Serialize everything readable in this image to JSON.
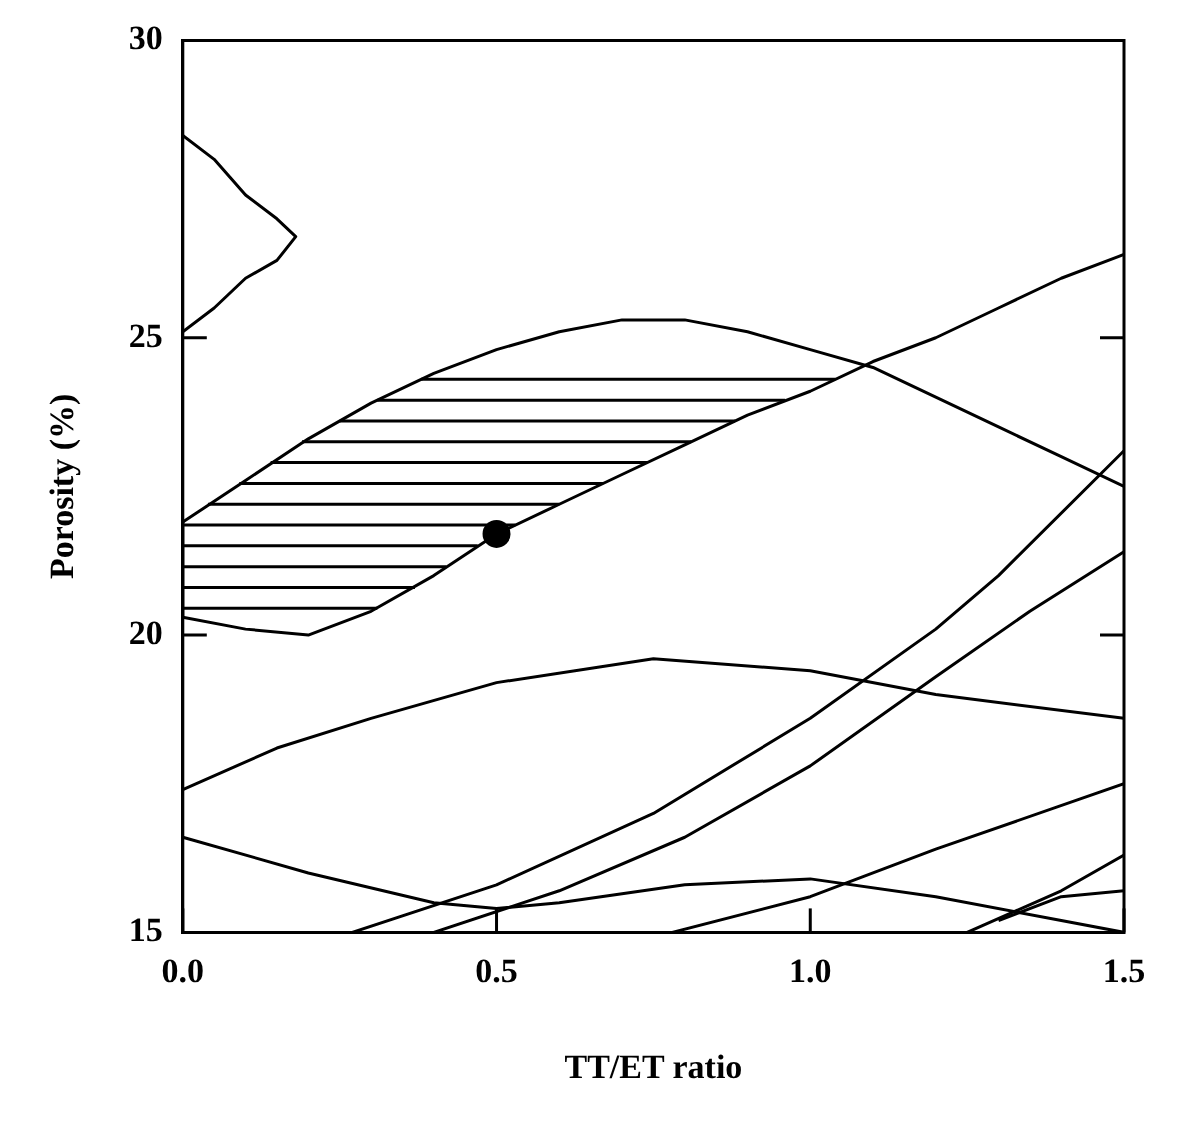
{
  "chart_data": {
    "type": "line",
    "xlabel": "TT/ET ratio",
    "ylabel": "Porosity (%)",
    "xlim": [
      0,
      1.5
    ],
    "ylim": [
      15,
      30
    ],
    "xticks": [
      {
        "value": 0,
        "label": "0.0"
      },
      {
        "value": 0.5,
        "label": "0.5"
      },
      {
        "value": 1,
        "label": "1.0"
      },
      {
        "value": 1.5,
        "label": "1.5"
      }
    ],
    "yticks": [
      15,
      20,
      25,
      30
    ],
    "grid": false,
    "legend": false,
    "marker": "none",
    "line_style": "solid",
    "series": [
      {
        "color": "#000000",
        "x": [
          0,
          0.05,
          0.1,
          0.15,
          0.18,
          0.15,
          0.1,
          0.05,
          0
        ],
        "values": [
          28.4,
          28,
          27.4,
          27,
          26.7,
          26.3,
          26,
          25.5,
          25.1
        ]
      },
      {
        "color": "#000000",
        "x": [
          0,
          0.1,
          0.2,
          0.3,
          0.4,
          0.5,
          0.6,
          0.7,
          0.8,
          0.9,
          1,
          1.1,
          1.2,
          1.3,
          1.4,
          1.5
        ],
        "values": [
          21.9,
          22.6,
          23.3,
          23.9,
          24.4,
          24.8,
          25.1,
          25.3,
          25.3,
          25.1,
          24.8,
          24.5,
          24,
          23.5,
          23,
          22.5
        ]
      },
      {
        "color": "#000000",
        "x": [
          0,
          0,
          0.1,
          0.2,
          0.3,
          0.4,
          0.5,
          0.6,
          0.7,
          0.8,
          0.9,
          1,
          1.1,
          1.2,
          1.3,
          1.4,
          1.5
        ],
        "values": [
          21.9,
          20.3,
          20.1,
          20,
          20.4,
          21,
          21.7,
          22.2,
          22.7,
          23.2,
          23.7,
          24.1,
          24.6,
          25,
          25.5,
          26,
          26.4
        ]
      },
      {
        "color": "#000000",
        "x": [
          0,
          0.15,
          0.3,
          0.5,
          0.75,
          1,
          1.2,
          1.5
        ],
        "values": [
          17.4,
          18.1,
          18.6,
          19.2,
          19.6,
          19.4,
          19,
          18.6
        ]
      },
      {
        "color": "#000000",
        "x": [
          0,
          0.2,
          0.4,
          0.5,
          0.6,
          0.8,
          1,
          1.2,
          1.4,
          1.5
        ],
        "values": [
          16.6,
          16,
          15.5,
          15.4,
          15.5,
          15.8,
          15.9,
          15.6,
          15.2,
          15
        ]
      },
      {
        "color": "#000000",
        "x": [
          0.27,
          0.5,
          0.75,
          1,
          1.2,
          1.3,
          1.5
        ],
        "values": [
          15,
          15.8,
          17,
          18.6,
          20.1,
          21,
          23.1
        ]
      },
      {
        "color": "#000000",
        "x": [
          0.4,
          0.6,
          0.8,
          1,
          1.2,
          1.35,
          1.5
        ],
        "values": [
          15,
          15.7,
          16.6,
          17.8,
          19.3,
          20.4,
          21.4
        ]
      },
      {
        "color": "#000000",
        "x": [
          0.78,
          1,
          1.2,
          1.5
        ],
        "values": [
          15,
          15.6,
          16.4,
          17.5
        ]
      },
      {
        "color": "#000000",
        "x": [
          1.25,
          1.4,
          1.5
        ],
        "values": [
          15,
          15.7,
          16.3
        ]
      },
      {
        "color": "#000000",
        "x": [
          1.3,
          1.4,
          1.5
        ],
        "values": [
          15.2,
          15.6,
          15.7
        ]
      },
      {
        "color": "#000000",
        "x": [
          0,
          0.31
        ],
        "values": [
          20.45,
          20.45
        ]
      },
      {
        "color": "#000000",
        "x": [
          0,
          0.37
        ],
        "values": [
          20.8,
          20.8
        ]
      },
      {
        "color": "#000000",
        "x": [
          0,
          0.42
        ],
        "values": [
          21.15,
          21.15
        ]
      },
      {
        "color": "#000000",
        "x": [
          0,
          0.47
        ],
        "values": [
          21.5,
          21.5
        ]
      },
      {
        "color": "#000000",
        "x": [
          0,
          0.53
        ],
        "values": [
          21.85,
          21.85
        ]
      },
      {
        "color": "#000000",
        "x": [
          0.04,
          0.6
        ],
        "values": [
          22.2,
          22.2
        ]
      },
      {
        "color": "#000000",
        "x": [
          0.09,
          0.67
        ],
        "values": [
          22.55,
          22.55
        ]
      },
      {
        "color": "#000000",
        "x": [
          0.14,
          0.74
        ],
        "values": [
          22.9,
          22.9
        ]
      },
      {
        "color": "#000000",
        "x": [
          0.19,
          0.81
        ],
        "values": [
          23.25,
          23.25
        ]
      },
      {
        "color": "#000000",
        "x": [
          0.25,
          0.88
        ],
        "values": [
          23.6,
          23.6
        ]
      },
      {
        "color": "#000000",
        "x": [
          0.31,
          0.96
        ],
        "values": [
          23.95,
          23.95
        ]
      },
      {
        "color": "#000000",
        "x": [
          0.38,
          1.04
        ],
        "values": [
          24.3,
          24.3
        ]
      },
      {
        "type": "scatter",
        "marker": "circle",
        "color": "#000000",
        "x": [
          0.5
        ],
        "values": [
          21.7
        ]
      }
    ]
  }
}
